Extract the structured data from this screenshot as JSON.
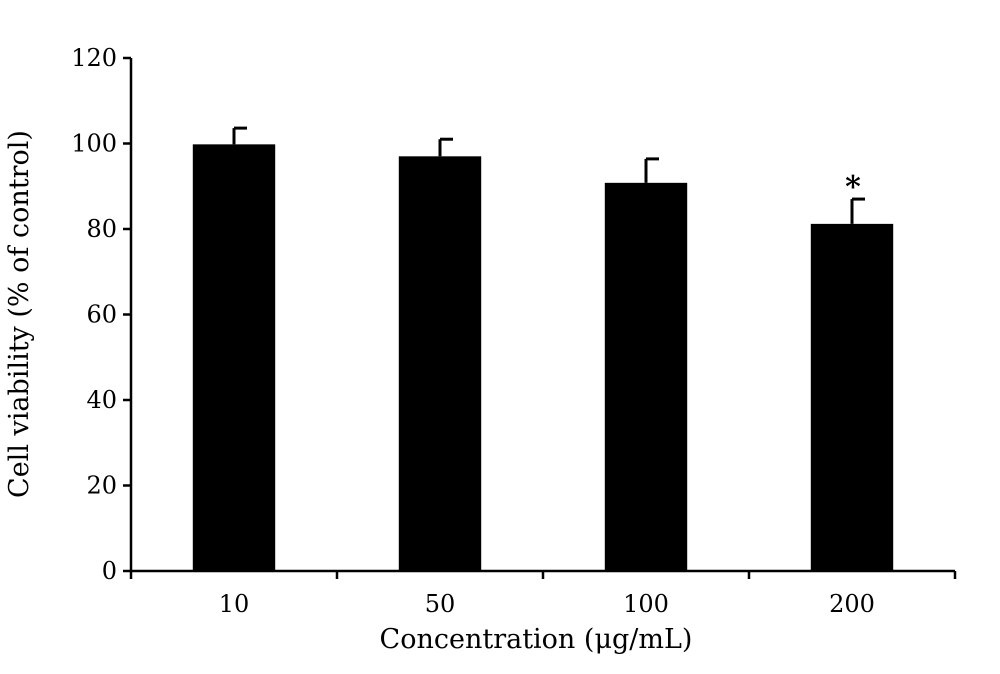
{
  "chart_data": {
    "type": "bar",
    "title": "",
    "xlabel": "Concentration (μg/mL)",
    "ylabel": "Cell viability (% of control)",
    "categories": [
      "10",
      "50",
      "100",
      "200"
    ],
    "series": [
      {
        "values": [
          99.8,
          97.0,
          90.8,
          81.2
        ],
        "errors": [
          3.8,
          4.0,
          5.6,
          5.8
        ]
      }
    ],
    "ylim": [
      0,
      120
    ],
    "yticks": [
      "0",
      "20",
      "40",
      "60",
      "80",
      "100",
      "120"
    ],
    "annotations": [
      {
        "category": "200",
        "text": "*"
      }
    ],
    "bar_color": "#000000",
    "grid": false,
    "legend": "none"
  }
}
